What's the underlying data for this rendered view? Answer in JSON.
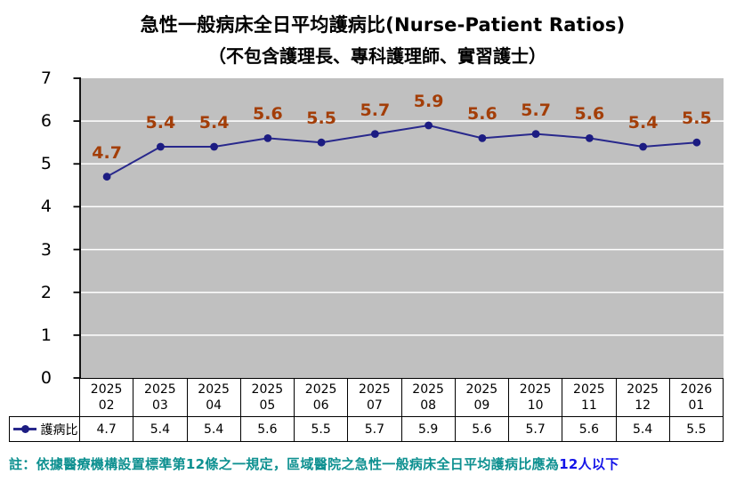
{
  "chart_data": {
    "type": "line",
    "title": "急性一般病床全日平均護病比(Nurse-Patient Ratios)",
    "subtitle": "（不包含護理長、專科護理師、實習護士）",
    "categories": [
      "2025 02",
      "2025 03",
      "2025 04",
      "2025 05",
      "2025 06",
      "2025 07",
      "2025 08",
      "2025 09",
      "2025 10",
      "2025 11",
      "2025 12",
      "2026 01"
    ],
    "series": [
      {
        "name": "護病比",
        "values": [
          4.7,
          5.4,
          5.4,
          5.6,
          5.5,
          5.7,
          5.9,
          5.6,
          5.7,
          5.6,
          5.4,
          5.5
        ]
      }
    ],
    "ylim": [
      0,
      7
    ],
    "yticks": [
      0,
      1,
      2,
      3,
      4,
      5,
      6,
      7
    ],
    "grid": true,
    "data_labels": true,
    "legend_position": "data-table-left"
  },
  "footnote": {
    "prefix": "註：依據醫療機構設置標準第12條之一規定，區域醫院之急性一般病床全日平均護病比應為",
    "highlight": "12人以下"
  },
  "colors": {
    "line": "#28288C",
    "marker": "#1C1C82",
    "data_label": "#A33E08",
    "plot_bg": "#C0C0C0",
    "gridline": "#FFFFFF",
    "axis": "#000000",
    "table_border": "#000000",
    "footnote_text": "#0D9090",
    "footnote_highlight": "#1414E8"
  }
}
